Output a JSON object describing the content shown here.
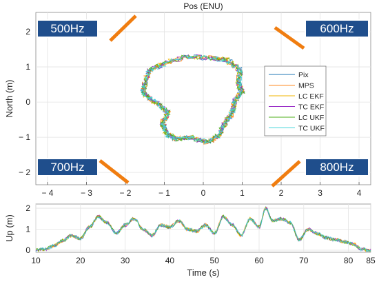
{
  "chart_data": [
    {
      "type": "line",
      "title": "Pos (ENU)",
      "xlabel": "",
      "ylabel": "North (m)",
      "xlim": [
        -4.3,
        4.3
      ],
      "ylim": [
        -2.35,
        2.55
      ],
      "xticks": [
        "− 4",
        "− 3",
        "− 2",
        "− 1",
        "0",
        "1",
        "2",
        "3",
        "4"
      ],
      "xtick_values": [
        -4,
        -3,
        -2,
        -1,
        0,
        1,
        2,
        3,
        4
      ],
      "yticks": [
        "2",
        "1",
        "0",
        "− 1",
        "− 2"
      ],
      "ytick_values": [
        2,
        1,
        0,
        -1,
        -2
      ],
      "grid": true,
      "legend_position": "right",
      "series": [
        {
          "name": "Pix",
          "color": "#1f77b4"
        },
        {
          "name": "MPS",
          "color": "#ff7f0e"
        },
        {
          "name": "LC EKF",
          "color": "#f2b600"
        },
        {
          "name": "TC EKF",
          "color": "#9b30c8"
        },
        {
          "name": "LC UKF",
          "color": "#4caf1a"
        },
        {
          "name": "TC UKF",
          "color": "#3fd4d9"
        }
      ],
      "trajectory_approx": [
        [
          -1.5,
          0.5
        ],
        [
          -1.4,
          0.9
        ],
        [
          -1.0,
          1.1
        ],
        [
          -0.4,
          1.3
        ],
        [
          0.2,
          1.25
        ],
        [
          0.6,
          1.2
        ],
        [
          0.95,
          0.9
        ],
        [
          0.9,
          0.55
        ],
        [
          1.0,
          0.3
        ],
        [
          0.8,
          0.05
        ],
        [
          0.75,
          -0.3
        ],
        [
          0.55,
          -0.6
        ],
        [
          0.4,
          -0.95
        ],
        [
          0.1,
          -1.15
        ],
        [
          -0.3,
          -1.0
        ],
        [
          -0.7,
          -1.05
        ],
        [
          -0.95,
          -0.9
        ],
        [
          -1.05,
          -0.6
        ],
        [
          -0.9,
          -0.3
        ],
        [
          -1.1,
          -0.1
        ],
        [
          -1.4,
          0.1
        ],
        [
          -1.55,
          0.3
        ],
        [
          -1.5,
          0.5
        ]
      ]
    },
    {
      "type": "line",
      "title": "",
      "xlabel": "Time (s)",
      "ylabel": "Up (m)",
      "xlim": [
        10,
        85
      ],
      "ylim": [
        -0.1,
        2.2
      ],
      "xticks": [
        "10",
        "20",
        "30",
        "40",
        "50",
        "60",
        "70",
        "80",
        "85"
      ],
      "xtick_values": [
        10,
        20,
        30,
        40,
        50,
        60,
        70,
        80,
        85
      ],
      "yticks": [
        "2",
        "1",
        "0"
      ],
      "ytick_values": [
        2,
        1,
        0
      ],
      "grid": true,
      "up_series_approx": {
        "x": [
          10,
          12,
          14,
          16,
          18,
          20,
          22,
          24,
          26,
          28,
          30,
          32,
          34,
          36,
          38,
          40,
          42,
          44,
          46,
          48,
          50,
          52,
          54,
          56,
          58,
          60,
          61.5,
          63,
          65,
          67,
          69,
          71,
          73,
          75,
          77,
          79,
          81,
          83,
          85
        ],
        "y": [
          0.0,
          0.05,
          0.2,
          0.45,
          0.7,
          0.55,
          1.1,
          1.6,
          1.3,
          0.8,
          1.2,
          1.5,
          1.0,
          0.7,
          1.2,
          1.1,
          1.4,
          1.0,
          0.9,
          1.2,
          0.8,
          1.6,
          1.2,
          0.7,
          1.5,
          1.1,
          2.0,
          1.4,
          1.5,
          1.3,
          0.5,
          1.0,
          0.8,
          0.6,
          0.5,
          0.4,
          0.3,
          0.05,
          0.0
        ]
      }
    }
  ],
  "annotations": {
    "badge_top_left": "500Hz",
    "badge_top_right": "600Hz",
    "badge_bottom_left": "700Hz",
    "badge_bottom_right": "800Hz",
    "badge_color": "#1f4e8c",
    "marker_color": "#f07d10"
  }
}
